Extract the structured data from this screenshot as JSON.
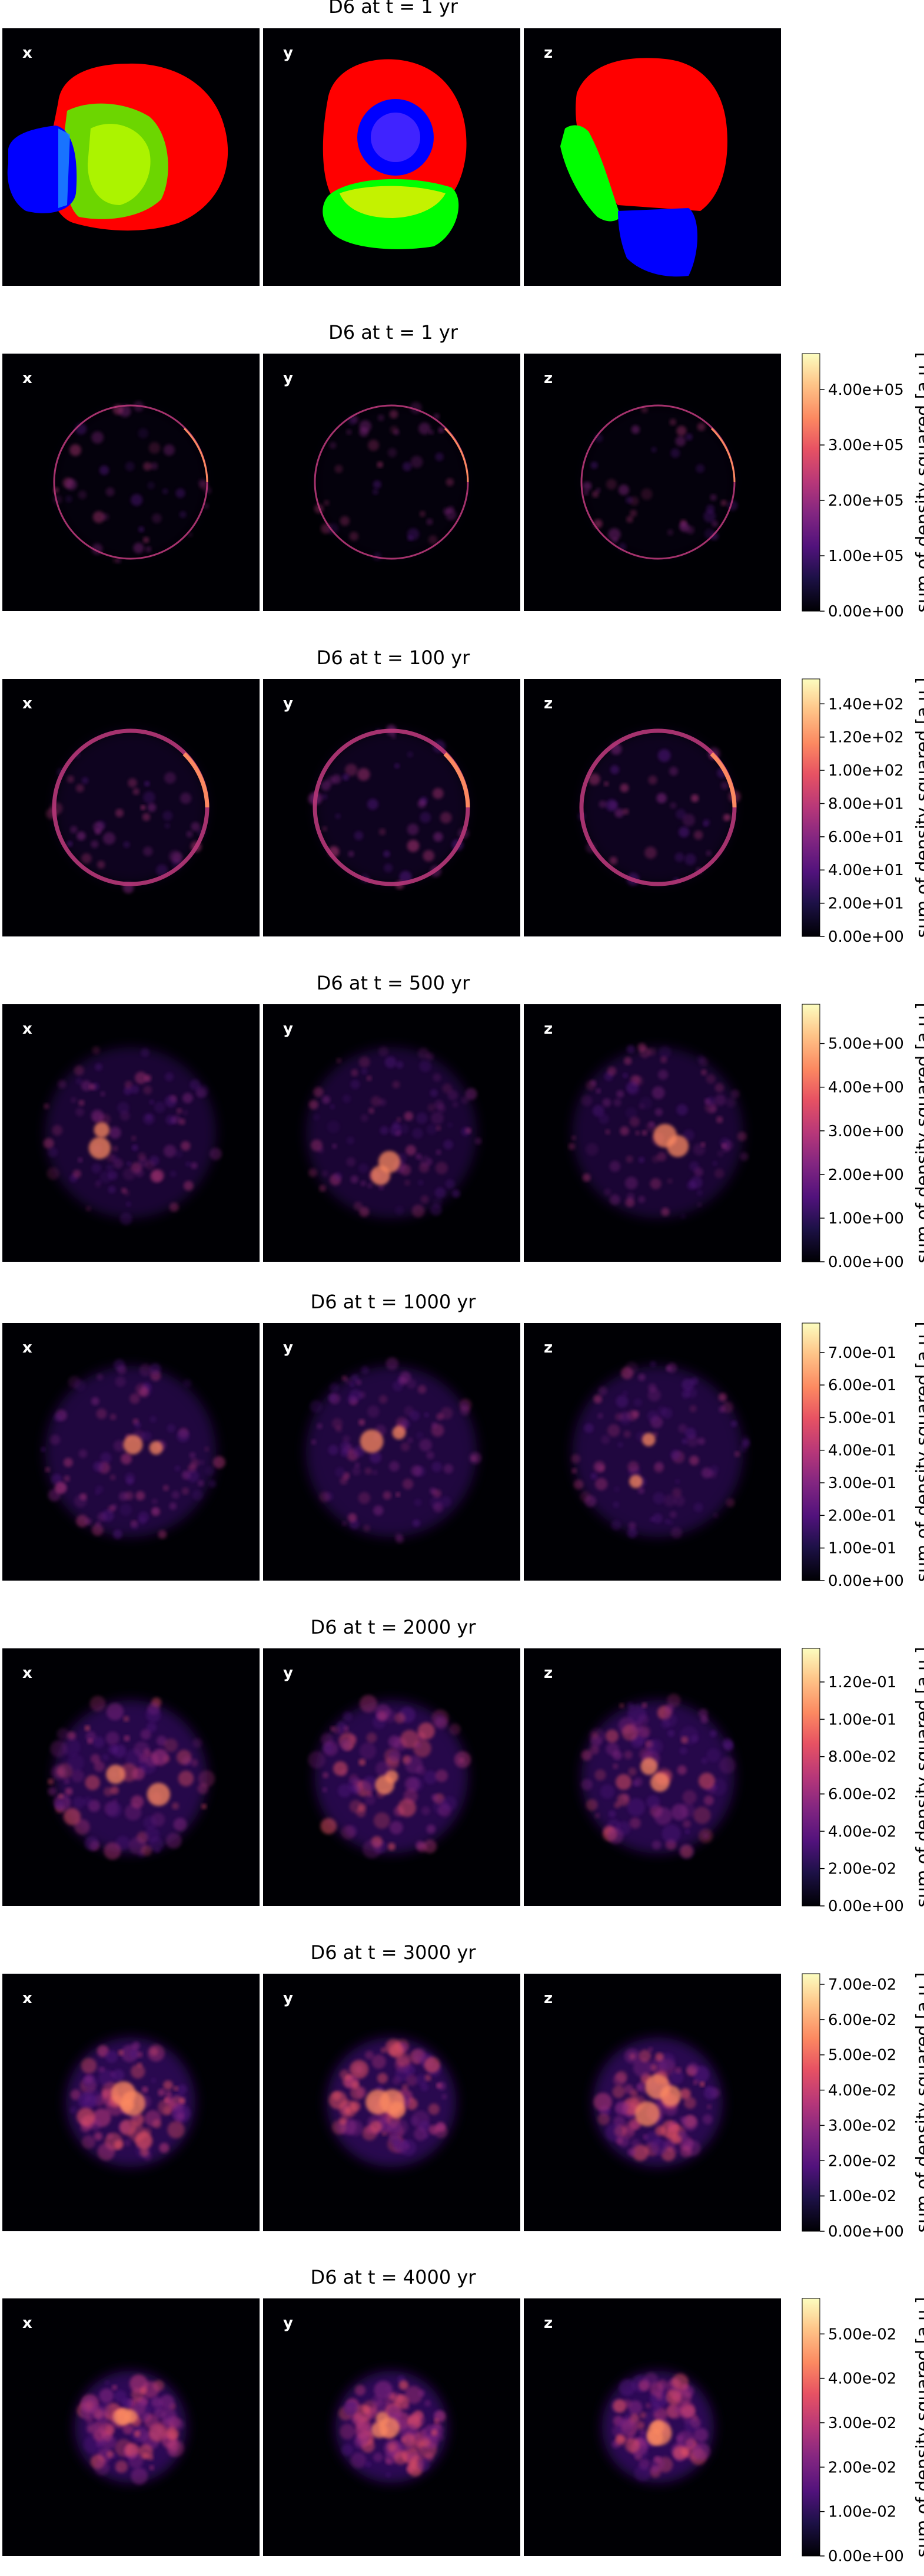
{
  "figure": {
    "rows": [
      {
        "title": "D6 at t =   1 yr",
        "kind": "segmentation",
        "panels": [
          "x",
          "y",
          "z"
        ],
        "colorbar": null
      },
      {
        "title": "D6 at t =   1 yr",
        "kind": "density",
        "panels": [
          "x",
          "y",
          "z"
        ],
        "colorbar": {
          "label": "sum of density squared [a.u.]",
          "ticks": [
            "4.00e+05",
            "3.00e+05",
            "2.00e+05",
            "1.00e+05",
            "0.00e+00"
          ],
          "tick_values": [
            400000,
            300000,
            200000,
            100000,
            0
          ],
          "max": 465000
        }
      },
      {
        "title": "D6 at t = 100 yr",
        "kind": "density",
        "panels": [
          "x",
          "y",
          "z"
        ],
        "colorbar": {
          "label": "sum of density squared [a.u.]",
          "ticks": [
            "1.40e+02",
            "1.20e+02",
            "1.00e+02",
            "8.00e+01",
            "6.00e+01",
            "4.00e+01",
            "2.00e+01",
            "0.00e+00"
          ],
          "tick_values": [
            140,
            120,
            100,
            80,
            60,
            40,
            20,
            0
          ],
          "max": 155
        }
      },
      {
        "title": "D6 at t = 500 yr",
        "kind": "density",
        "panels": [
          "x",
          "y",
          "z"
        ],
        "colorbar": {
          "label": "sum of density squared [a.u.]",
          "ticks": [
            "5.00e+00",
            "4.00e+00",
            "3.00e+00",
            "2.00e+00",
            "1.00e+00",
            "0.00e+00"
          ],
          "tick_values": [
            5,
            4,
            3,
            2,
            1,
            0
          ],
          "max": 5.9
        }
      },
      {
        "title": "D6 at t = 1000 yr",
        "kind": "density",
        "panels": [
          "x",
          "y",
          "z"
        ],
        "colorbar": {
          "label": "sum of density squared [a.u.]",
          "ticks": [
            "7.00e-01",
            "6.00e-01",
            "5.00e-01",
            "4.00e-01",
            "3.00e-01",
            "2.00e-01",
            "1.00e-01",
            "0.00e+00"
          ],
          "tick_values": [
            0.7,
            0.6,
            0.5,
            0.4,
            0.3,
            0.2,
            0.1,
            0
          ],
          "max": 0.79
        }
      },
      {
        "title": "D6 at t = 2000 yr",
        "kind": "density",
        "panels": [
          "x",
          "y",
          "z"
        ],
        "colorbar": {
          "label": "sum of density squared [a.u.]",
          "ticks": [
            "1.20e-01",
            "1.00e-01",
            "8.00e-02",
            "6.00e-02",
            "4.00e-02",
            "2.00e-02",
            "0.00e+00"
          ],
          "tick_values": [
            0.12,
            0.1,
            0.08,
            0.06,
            0.04,
            0.02,
            0
          ],
          "max": 0.138
        }
      },
      {
        "title": "D6 at t = 3000 yr",
        "kind": "density",
        "panels": [
          "x",
          "y",
          "z"
        ],
        "colorbar": {
          "label": "sum of density squared [a.u.]",
          "ticks": [
            "7.00e-02",
            "6.00e-02",
            "5.00e-02",
            "4.00e-02",
            "3.00e-02",
            "2.00e-02",
            "1.00e-02",
            "0.00e+00"
          ],
          "tick_values": [
            0.07,
            0.06,
            0.05,
            0.04,
            0.03,
            0.02,
            0.01,
            0
          ],
          "max": 0.073
        }
      },
      {
        "title": "D6 at t = 4000 yr",
        "kind": "density",
        "panels": [
          "x",
          "y",
          "z"
        ],
        "colorbar": {
          "label": "sum of density squared [a.u.]",
          "ticks": [
            "5.00e-02",
            "4.00e-02",
            "3.00e-02",
            "2.00e-02",
            "1.00e-02",
            "0.00e+00"
          ],
          "tick_values": [
            0.05,
            0.04,
            0.03,
            0.02,
            0.01,
            0
          ],
          "max": 0.058
        }
      }
    ],
    "colors": {
      "segment_red": "#ff0000",
      "segment_green": "#00ff00",
      "segment_blue": "#0000ff",
      "panel_background": "#000004",
      "colormap": "magma"
    }
  }
}
